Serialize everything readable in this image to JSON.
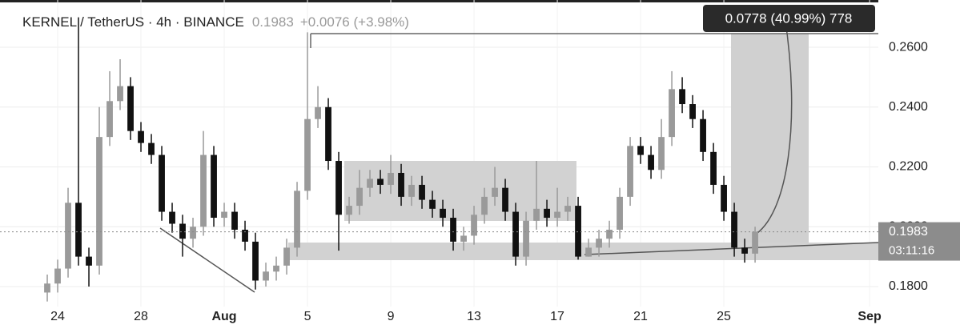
{
  "chart_data": {
    "type": "candlestick",
    "symbol": "KERNEL / TetherUS · 4h · BINANCE",
    "last_price": 0.1983,
    "change": "+0.0076 (+3.98%)",
    "measure_label": "0.0778 (40.99%) 778",
    "countdown": "03:11:16",
    "up_color": "#9a9a9a",
    "down_color": "#111111",
    "grid": true,
    "x": [
      -0.5,
      0,
      0.5,
      1,
      1.5,
      2,
      2.5,
      3,
      3.5,
      4,
      4.5,
      5,
      5.5,
      6,
      6.5,
      7,
      7.5,
      8,
      8.5,
      9,
      9.5,
      10,
      10.5,
      11,
      11.5,
      12,
      12.5,
      13,
      13.5,
      14,
      14.5,
      15,
      15.5,
      16,
      16.5,
      17,
      17.5,
      18,
      18.5,
      19,
      19.5,
      20,
      20.5,
      21,
      21.5,
      22,
      22.5,
      23,
      23.5,
      24,
      24.5,
      25,
      25.5,
      26,
      26.5,
      27,
      27.5,
      28,
      28.5,
      29,
      29.5,
      30,
      30.5,
      31,
      31.5,
      32,
      32.5,
      33,
      33.5
    ],
    "open": [
      0.178,
      0.181,
      0.186,
      0.208,
      0.19,
      0.187,
      0.23,
      0.242,
      0.247,
      0.232,
      0.228,
      0.224,
      0.205,
      0.201,
      0.196,
      0.2,
      0.224,
      0.203,
      0.205,
      0.199,
      0.195,
      0.182,
      0.185,
      0.187,
      0.193,
      0.212,
      0.236,
      0.24,
      0.222,
      0.204,
      0.207,
      0.213,
      0.216,
      0.214,
      0.218,
      0.21,
      0.214,
      0.209,
      0.206,
      0.203,
      0.195,
      0.197,
      0.204,
      0.21,
      0.213,
      0.205,
      0.19,
      0.202,
      0.206,
      0.203,
      0.205,
      0.207,
      0.19,
      0.193,
      0.196,
      0.199,
      0.21,
      0.227,
      0.224,
      0.219,
      0.23,
      0.246,
      0.241,
      0.236,
      0.225,
      0.214,
      0.205,
      0.193,
      0.191
    ],
    "high": [
      0.184,
      0.189,
      0.213,
      0.27,
      0.193,
      0.24,
      0.252,
      0.256,
      0.25,
      0.235,
      0.231,
      0.227,
      0.208,
      0.204,
      0.203,
      0.232,
      0.227,
      0.208,
      0.208,
      0.202,
      0.198,
      0.188,
      0.19,
      0.196,
      0.215,
      0.265,
      0.247,
      0.243,
      0.225,
      0.21,
      0.219,
      0.219,
      0.219,
      0.224,
      0.221,
      0.217,
      0.217,
      0.212,
      0.209,
      0.206,
      0.2,
      0.207,
      0.213,
      0.22,
      0.216,
      0.208,
      0.205,
      0.222,
      0.209,
      0.213,
      0.21,
      0.21,
      0.196,
      0.199,
      0.202,
      0.213,
      0.23,
      0.23,
      0.227,
      0.236,
      0.252,
      0.25,
      0.244,
      0.239,
      0.228,
      0.217,
      0.208,
      0.196,
      0.2
    ],
    "low": [
      0.175,
      0.178,
      0.183,
      0.187,
      0.18,
      0.184,
      0.227,
      0.239,
      0.229,
      0.225,
      0.221,
      0.202,
      0.198,
      0.19,
      0.193,
      0.197,
      0.2,
      0.2,
      0.196,
      0.192,
      0.179,
      0.18,
      0.182,
      0.184,
      0.19,
      0.209,
      0.233,
      0.219,
      0.192,
      0.201,
      0.204,
      0.21,
      0.211,
      0.211,
      0.207,
      0.207,
      0.206,
      0.203,
      0.2,
      0.192,
      0.192,
      0.194,
      0.201,
      0.207,
      0.202,
      0.187,
      0.187,
      0.199,
      0.2,
      0.2,
      0.202,
      0.189,
      0.19,
      0.19,
      0.193,
      0.196,
      0.207,
      0.221,
      0.216,
      0.216,
      0.227,
      0.238,
      0.233,
      0.222,
      0.211,
      0.202,
      0.19,
      0.188,
      0.188
    ],
    "close": [
      0.181,
      0.186,
      0.208,
      0.19,
      0.187,
      0.23,
      0.242,
      0.247,
      0.232,
      0.228,
      0.224,
      0.205,
      0.201,
      0.196,
      0.2,
      0.224,
      0.203,
      0.205,
      0.199,
      0.195,
      0.182,
      0.185,
      0.187,
      0.193,
      0.212,
      0.236,
      0.24,
      0.222,
      0.204,
      0.207,
      0.213,
      0.216,
      0.214,
      0.218,
      0.21,
      0.214,
      0.209,
      0.206,
      0.203,
      0.195,
      0.197,
      0.204,
      0.21,
      0.213,
      0.205,
      0.19,
      0.202,
      0.206,
      0.203,
      0.205,
      0.207,
      0.19,
      0.193,
      0.196,
      0.199,
      0.21,
      0.227,
      0.224,
      0.219,
      0.23,
      0.246,
      0.241,
      0.236,
      0.225,
      0.214,
      0.205,
      0.193,
      0.191,
      0.1983
    ],
    "xlim": [
      -2.77,
      39.42
    ],
    "xticks": [
      {
        "value": 0,
        "label": "24"
      },
      {
        "value": 4,
        "label": "28"
      },
      {
        "value": 8,
        "label": "Aug"
      },
      {
        "value": 12,
        "label": "5"
      },
      {
        "value": 16,
        "label": "9"
      },
      {
        "value": 20,
        "label": "13"
      },
      {
        "value": 24,
        "label": "17"
      },
      {
        "value": 28,
        "label": "21"
      },
      {
        "value": 32,
        "label": "25"
      },
      {
        "value": 39,
        "label": "Sep"
      }
    ],
    "ylim": [
      0.1733,
      0.2758
    ],
    "yticks": [
      {
        "value": 0.18,
        "label": "0.1800"
      },
      {
        "value": 0.2,
        "label": "0.2000"
      },
      {
        "value": 0.22,
        "label": "0.2200"
      },
      {
        "value": 0.24,
        "label": "0.2400"
      },
      {
        "value": 0.26,
        "label": "0.2600"
      }
    ]
  }
}
